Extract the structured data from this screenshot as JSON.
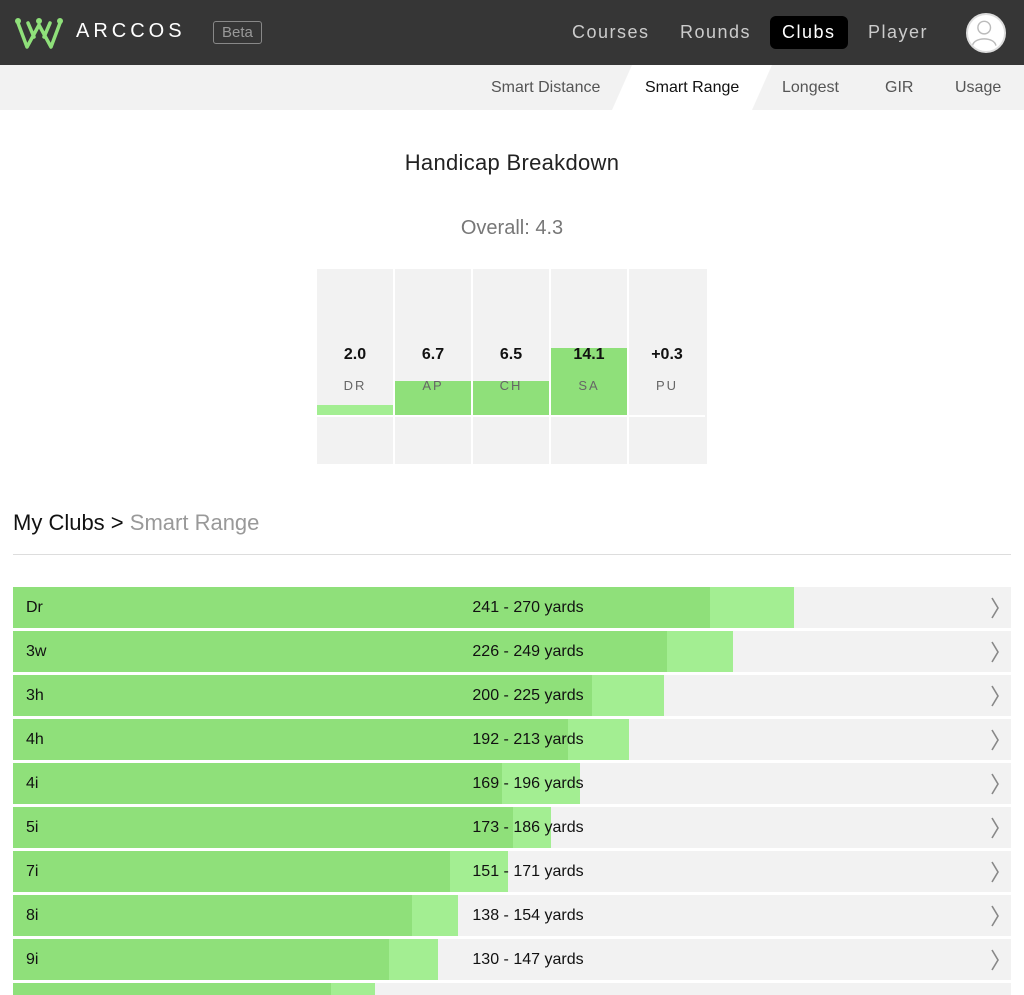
{
  "brand": {
    "name": "ARCCOS",
    "badge": "Beta",
    "logo_icon": "crown-logo-icon",
    "accent": "#8fe07a"
  },
  "nav": {
    "items": [
      {
        "label": "Courses",
        "active": false
      },
      {
        "label": "Rounds",
        "active": false
      },
      {
        "label": "Clubs",
        "active": true
      },
      {
        "label": "Player",
        "active": false
      }
    ],
    "avatar_icon": "user-avatar-icon"
  },
  "subnav": {
    "items": [
      {
        "label": "Smart Distance",
        "active": false
      },
      {
        "label": "Smart Range",
        "active": true
      },
      {
        "label": "Longest",
        "active": false
      },
      {
        "label": "GIR",
        "active": false
      },
      {
        "label": "Usage",
        "active": false
      }
    ]
  },
  "handicap": {
    "title": "Handicap Breakdown",
    "overall": "Overall: 4.3",
    "categories": [
      {
        "label": "DR",
        "value": "2.0",
        "level": 0.07
      },
      {
        "label": "AP",
        "value": "6.7",
        "level": 0.23
      },
      {
        "label": "CH",
        "value": "6.5",
        "level": 0.23
      },
      {
        "label": "SA",
        "value": "14.1",
        "level": 0.46
      },
      {
        "label": "PU",
        "value": "+0.3",
        "level": 0.0
      }
    ]
  },
  "my_clubs": {
    "title": "My Clubs >",
    "subtitle": "Smart Range",
    "chevron_icon": "chevron-right-icon",
    "rows": [
      {
        "club": "Dr",
        "range": "241 - 270 yards",
        "min": 241,
        "max": 270
      },
      {
        "club": "3w",
        "range": "226 - 249 yards",
        "min": 226,
        "max": 249
      },
      {
        "club": "3h",
        "range": "200 - 225 yards",
        "min": 200,
        "max": 225
      },
      {
        "club": "4h",
        "range": "192 - 213 yards",
        "min": 192,
        "max": 213
      },
      {
        "club": "4i",
        "range": "169 - 196 yards",
        "min": 169,
        "max": 196
      },
      {
        "club": "5i",
        "range": "173 - 186 yards",
        "min": 173,
        "max": 186
      },
      {
        "club": "7i",
        "range": "151 - 171 yards",
        "min": 151,
        "max": 171
      },
      {
        "club": "8i",
        "range": "138 - 154 yards",
        "min": 138,
        "max": 154
      },
      {
        "club": "9i",
        "range": "130 - 147 yards",
        "min": 130,
        "max": 147
      }
    ],
    "partial_row": {
      "min": 110,
      "max": 125
    },
    "scale_max": 345
  }
}
